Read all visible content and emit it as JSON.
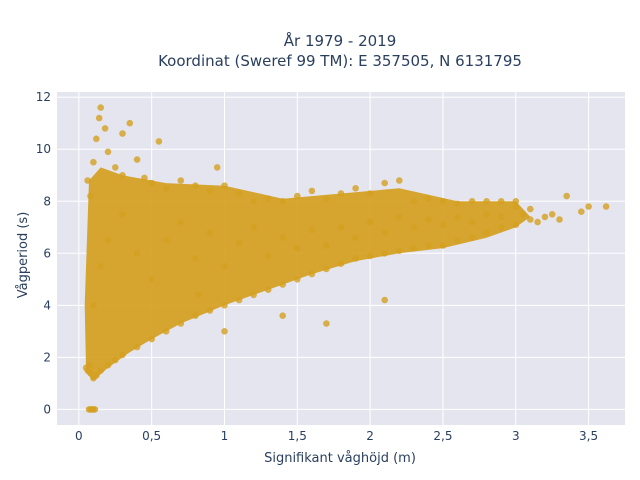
{
  "chart_data": {
    "type": "scatter",
    "title": "År 1979 - 2019",
    "subtitle": "Koordinat (Sweref 99 TM): E 357505, N 6131795",
    "xlabel": "Signifikant våghöjd (m)",
    "ylabel": "Vågperiod (s)",
    "xlim": [
      -0.15,
      3.75
    ],
    "ylim": [
      -0.6,
      12.2
    ],
    "x_ticks": [
      0,
      0.5,
      1,
      1.5,
      2,
      2.5,
      3,
      3.5
    ],
    "x_tick_labels": [
      "0",
      "0,5",
      "1",
      "1,5",
      "2",
      "2,5",
      "3",
      "3,5"
    ],
    "y_ticks": [
      0,
      2,
      4,
      6,
      8,
      10,
      12
    ],
    "y_tick_labels": [
      "0",
      "2",
      "4",
      "6",
      "8",
      "10",
      "12"
    ],
    "grid": true,
    "legend": "none",
    "marker_color": "#d4a020",
    "plot_background": "#e5e5f0",
    "series": [
      {
        "values": [
          [
            0.05,
            1.6
          ],
          [
            0.06,
            1.5
          ],
          [
            0.07,
            1.7
          ],
          [
            0.08,
            1.4
          ],
          [
            0.1,
            1.2
          ],
          [
            0.12,
            1.3
          ],
          [
            0.15,
            1.5
          ],
          [
            0.2,
            1.7
          ],
          [
            0.25,
            1.9
          ],
          [
            0.3,
            2.1
          ],
          [
            0.4,
            2.4
          ],
          [
            0.5,
            2.7
          ],
          [
            0.6,
            3.0
          ],
          [
            0.7,
            3.3
          ],
          [
            0.8,
            3.6
          ],
          [
            0.9,
            3.8
          ],
          [
            1.0,
            4.0
          ],
          [
            1.1,
            4.2
          ],
          [
            1.2,
            4.4
          ],
          [
            1.3,
            4.6
          ],
          [
            1.4,
            4.8
          ],
          [
            1.5,
            5.0
          ],
          [
            1.6,
            5.2
          ],
          [
            1.7,
            5.4
          ],
          [
            1.8,
            5.6
          ],
          [
            1.9,
            5.8
          ],
          [
            2.0,
            5.9
          ],
          [
            2.1,
            6.0
          ],
          [
            2.2,
            6.1
          ],
          [
            2.3,
            6.2
          ],
          [
            2.4,
            6.3
          ],
          [
            2.5,
            6.3
          ],
          [
            2.6,
            6.5
          ],
          [
            2.7,
            6.6
          ],
          [
            2.8,
            6.8
          ],
          [
            2.9,
            7.0
          ],
          [
            3.0,
            7.1
          ],
          [
            3.1,
            7.3
          ],
          [
            0.06,
            8.8
          ],
          [
            0.08,
            8.2
          ],
          [
            0.1,
            9.5
          ],
          [
            0.12,
            10.4
          ],
          [
            0.14,
            11.2
          ],
          [
            0.15,
            11.6
          ],
          [
            0.18,
            10.8
          ],
          [
            0.2,
            9.9
          ],
          [
            0.25,
            9.3
          ],
          [
            0.3,
            10.6
          ],
          [
            0.35,
            11.0
          ],
          [
            0.3,
            9.0
          ],
          [
            0.4,
            9.6
          ],
          [
            0.45,
            8.9
          ],
          [
            0.5,
            8.7
          ],
          [
            0.55,
            10.3
          ],
          [
            0.6,
            8.5
          ],
          [
            0.7,
            8.8
          ],
          [
            0.8,
            8.6
          ],
          [
            0.9,
            8.4
          ],
          [
            0.95,
            9.3
          ],
          [
            1.0,
            8.6
          ],
          [
            1.1,
            8.3
          ],
          [
            1.2,
            8.0
          ],
          [
            1.3,
            8.1
          ],
          [
            1.4,
            8.0
          ],
          [
            1.5,
            8.2
          ],
          [
            1.6,
            8.4
          ],
          [
            1.7,
            8.1
          ],
          [
            1.8,
            8.3
          ],
          [
            1.9,
            8.5
          ],
          [
            2.0,
            8.3
          ],
          [
            2.1,
            8.7
          ],
          [
            2.2,
            8.8
          ],
          [
            2.3,
            8.0
          ],
          [
            2.4,
            8.1
          ],
          [
            2.5,
            8.0
          ],
          [
            2.6,
            7.9
          ],
          [
            2.7,
            8.0
          ],
          [
            2.8,
            8.0
          ],
          [
            2.9,
            8.0
          ],
          [
            3.0,
            8.0
          ],
          [
            3.05,
            7.5
          ],
          [
            3.1,
            7.7
          ],
          [
            3.15,
            7.2
          ],
          [
            3.2,
            7.4
          ],
          [
            3.25,
            7.5
          ],
          [
            3.3,
            7.3
          ],
          [
            3.35,
            8.2
          ],
          [
            3.45,
            7.6
          ],
          [
            3.5,
            7.8
          ],
          [
            3.62,
            7.8
          ],
          [
            0.07,
            0.0
          ],
          [
            0.08,
            0.0
          ],
          [
            0.09,
            0.0
          ],
          [
            0.1,
            0.0
          ],
          [
            0.11,
            0.0
          ],
          [
            0.1,
            4.0
          ],
          [
            0.15,
            5.5
          ],
          [
            0.2,
            6.5
          ],
          [
            0.3,
            7.5
          ],
          [
            0.4,
            6.0
          ],
          [
            0.5,
            5.0
          ],
          [
            0.6,
            6.5
          ],
          [
            0.7,
            7.2
          ],
          [
            0.8,
            5.8
          ],
          [
            0.9,
            6.8
          ],
          [
            1.0,
            5.5
          ],
          [
            1.1,
            6.4
          ],
          [
            1.2,
            7.0
          ],
          [
            1.3,
            5.9
          ],
          [
            1.4,
            6.6
          ],
          [
            1.5,
            6.2
          ],
          [
            1.6,
            6.9
          ],
          [
            1.7,
            6.3
          ],
          [
            1.8,
            7.0
          ],
          [
            1.9,
            6.6
          ],
          [
            2.0,
            7.2
          ],
          [
            2.1,
            6.8
          ],
          [
            2.2,
            7.4
          ],
          [
            2.3,
            7.0
          ],
          [
            2.4,
            7.3
          ],
          [
            2.5,
            7.1
          ],
          [
            2.6,
            7.4
          ],
          [
            2.7,
            7.2
          ],
          [
            2.8,
            7.5
          ],
          [
            2.9,
            7.4
          ],
          [
            3.0,
            7.8
          ],
          [
            0.82,
            4.4
          ],
          [
            1.0,
            3.0
          ],
          [
            1.4,
            3.6
          ],
          [
            1.7,
            3.3
          ],
          [
            2.1,
            4.2
          ]
        ]
      }
    ]
  }
}
